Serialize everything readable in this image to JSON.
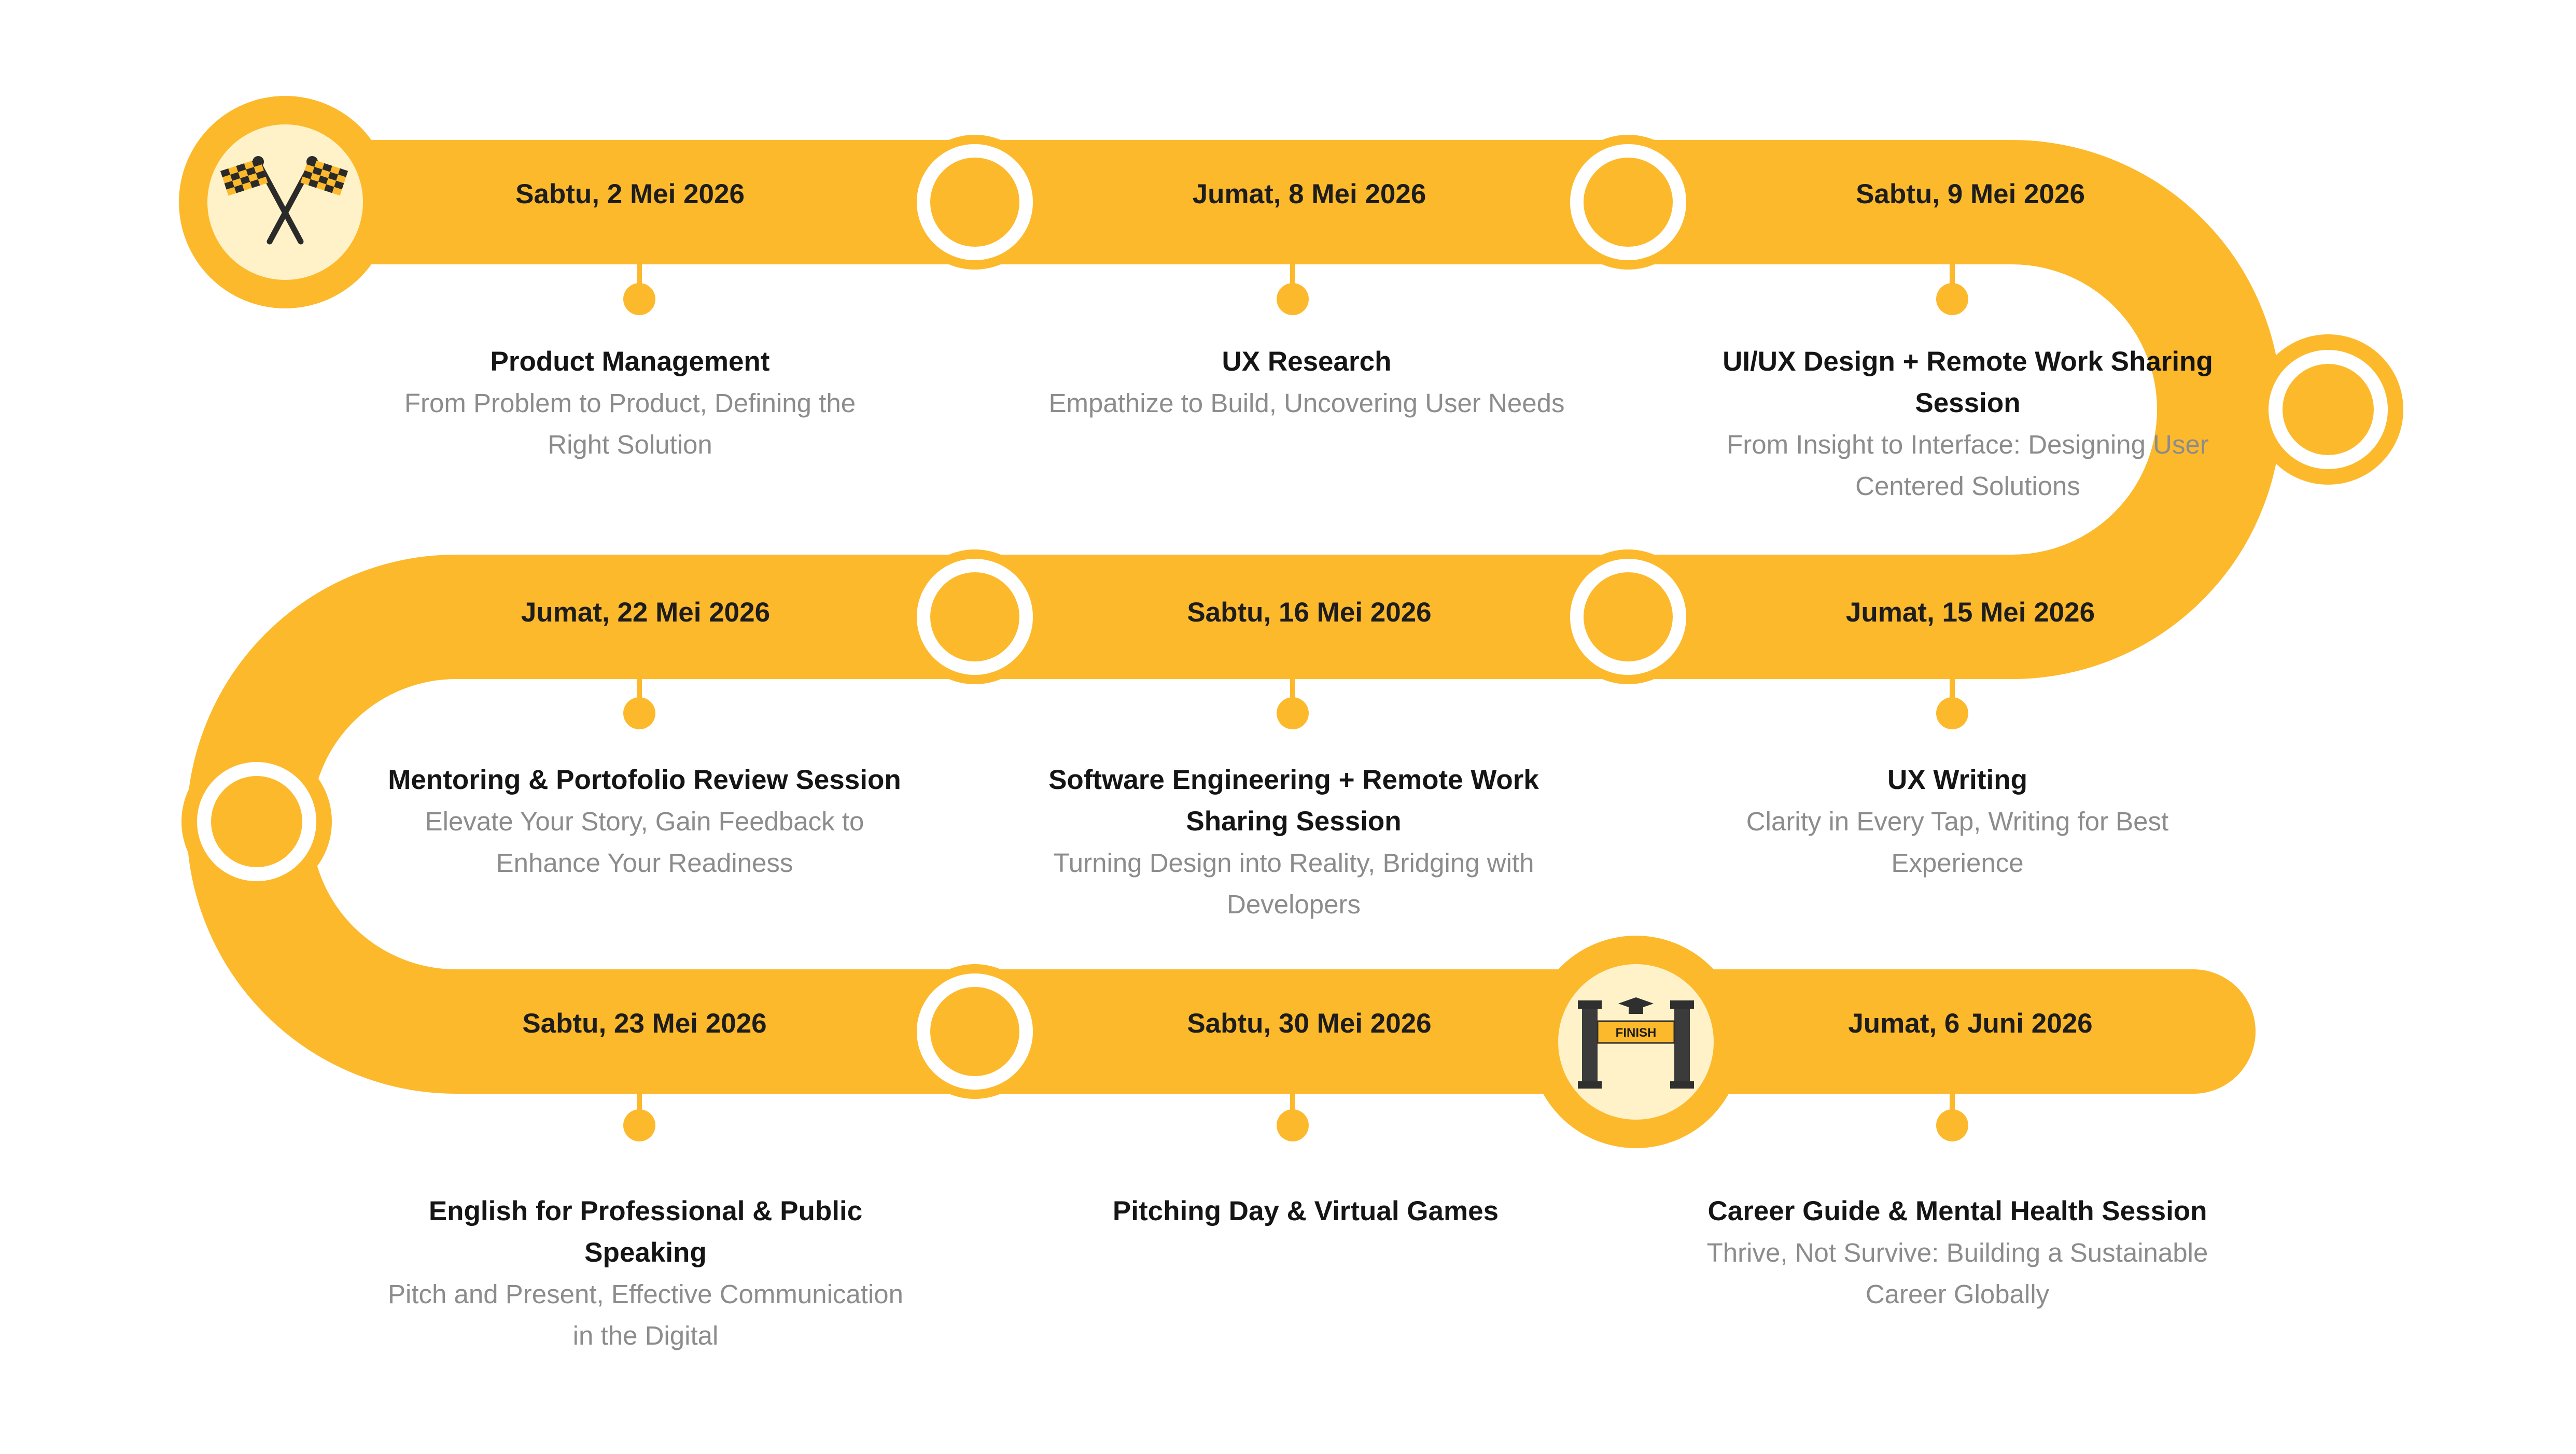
{
  "colors": {
    "accent": "#FDB92C",
    "node_inner": "#FFFFFF",
    "icon_bg": "#FFF2C8",
    "title": "#151515",
    "subtitle": "#8C8C8C"
  },
  "icons": {
    "start": "checkered-flags-icon",
    "finish": "finish-gate-icon"
  },
  "finish_label": "FINISH",
  "stops": [
    {
      "date": "Sabtu, 2 Mei 2026",
      "title": "Product Management",
      "subtitle": "From Problem to Product, Defining the Right Solution"
    },
    {
      "date": "Jumat, 8 Mei 2026",
      "title": "UX Research",
      "subtitle": "Empathize to Build, Uncovering User Needs"
    },
    {
      "date": "Sabtu, 9 Mei 2026",
      "title": "UI/UX Design + Remote Work Sharing Session",
      "subtitle": "From Insight to Interface: Designing User Centered Solutions"
    },
    {
      "date": "Jumat, 15 Mei 2026",
      "title": "UX Writing",
      "subtitle": "Clarity in Every Tap, Writing for Best Experience"
    },
    {
      "date": "Sabtu, 16 Mei 2026",
      "title": "Software Engineering + Remote Work Sharing Session",
      "subtitle": "Turning Design into Reality, Bridging with Developers"
    },
    {
      "date": "Jumat, 22 Mei 2026",
      "title": "Mentoring & Portofolio Review Session",
      "subtitle": "Elevate Your Story, Gain Feedback to Enhance Your Readiness"
    },
    {
      "date": "Sabtu, 23 Mei 2026",
      "title": "English for Professional & Public Speaking",
      "subtitle": "Pitch and Present, Effective Communication in the Digital"
    },
    {
      "date": "Sabtu, 30 Mei 2026",
      "title": "Pitching Day & Virtual Games",
      "subtitle": ""
    },
    {
      "date": "Jumat, 6 Juni 2026",
      "title": "Career Guide & Mental Health Session",
      "subtitle": "Thrive, Not Survive: Building a Sustainable Career Globally"
    }
  ]
}
